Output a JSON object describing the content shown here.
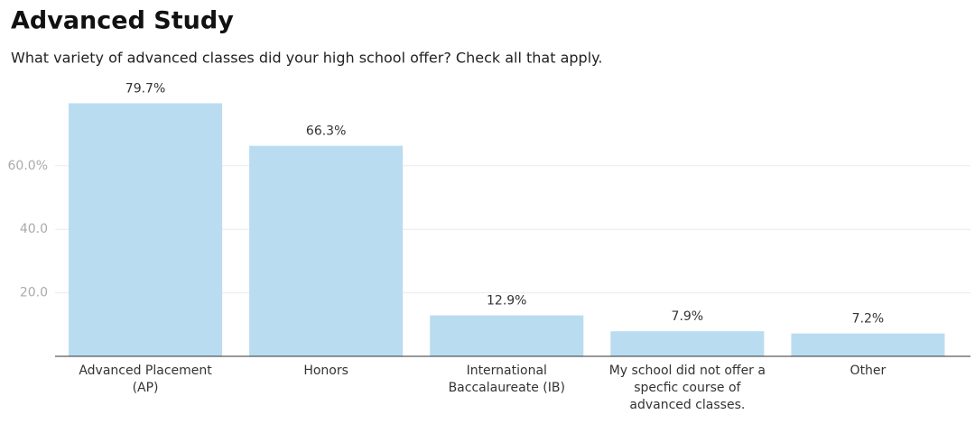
{
  "chart_data": {
    "type": "bar",
    "title": "Advanced Study",
    "subtitle": "What variety of advanced classes did your high school offer? Check all that apply.",
    "categories": [
      "Advanced Placement (AP)",
      "Honors",
      "International Baccalaureate (IB)",
      "My school did not offer a specfic course of advanced classes.",
      "Other"
    ],
    "values": [
      79.7,
      66.3,
      12.9,
      7.9,
      7.2
    ],
    "value_labels": [
      "79.7%",
      "66.3%",
      "12.9%",
      "7.9%",
      "7.2%"
    ],
    "color": "#badcf0",
    "ylim": [
      0,
      80
    ],
    "yticks": [
      {
        "value": 20,
        "label": "20.0"
      },
      {
        "value": 40,
        "label": "40.0"
      },
      {
        "value": 60,
        "label": "60.0%"
      }
    ],
    "grid": true
  }
}
